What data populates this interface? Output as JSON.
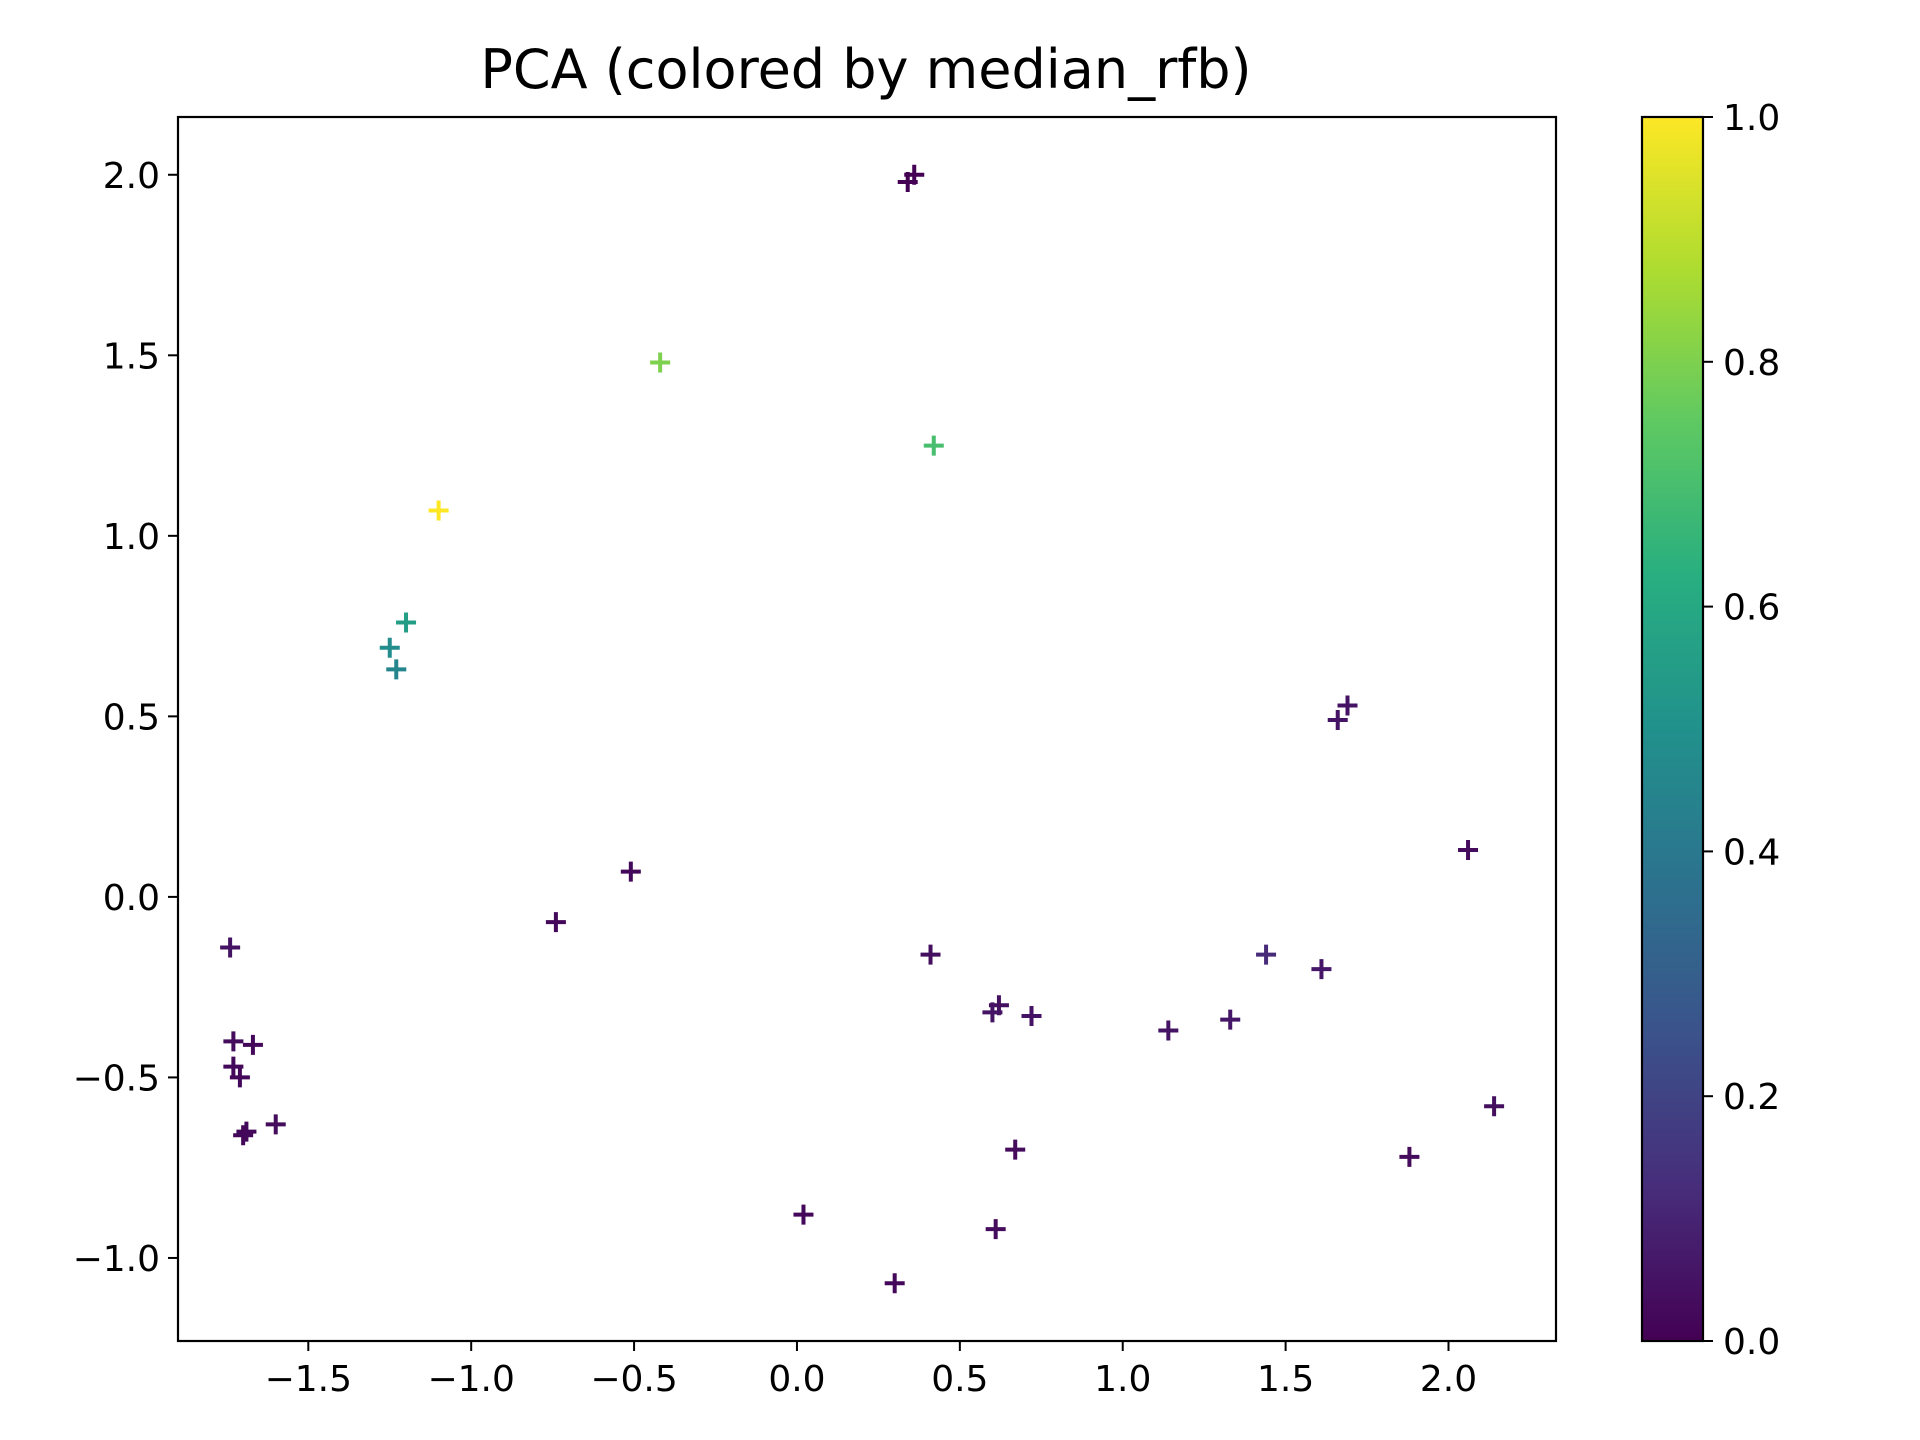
{
  "chart_data": {
    "type": "scatter",
    "title": "PCA (colored by median_rfb)",
    "xlabel": "",
    "ylabel": "",
    "xlim": [
      -1.9,
      2.33
    ],
    "ylim": [
      -1.23,
      2.16
    ],
    "xticks": [
      -1.5,
      -1.0,
      -0.5,
      0.0,
      0.5,
      1.0,
      1.5,
      2.0
    ],
    "xtick_labels": [
      "−1.5",
      "−1.0",
      "−0.5",
      "0.0",
      "0.5",
      "1.0",
      "1.5",
      "2.0"
    ],
    "yticks": [
      -1.0,
      -0.5,
      0.0,
      0.5,
      1.0,
      1.5,
      2.0
    ],
    "ytick_labels": [
      "−1.0",
      "−0.5",
      "0.0",
      "0.5",
      "1.0",
      "1.5",
      "2.0"
    ],
    "marker": "+",
    "grid": false,
    "colormap": "viridis",
    "colorbar": {
      "range": [
        0.0,
        1.0
      ],
      "ticks": [
        0.0,
        0.2,
        0.4,
        0.6,
        0.8,
        1.0
      ],
      "tick_labels": [
        "0.0",
        "0.2",
        "0.4",
        "0.6",
        "0.8",
        "1.0"
      ]
    },
    "points": [
      {
        "x": 0.34,
        "y": 1.98,
        "c": 0.0
      },
      {
        "x": 0.36,
        "y": 2.0,
        "c": 0.0
      },
      {
        "x": -0.42,
        "y": 1.48,
        "c": 0.8
      },
      {
        "x": 0.42,
        "y": 1.25,
        "c": 0.7
      },
      {
        "x": -1.1,
        "y": 1.07,
        "c": 1.0
      },
      {
        "x": -1.2,
        "y": 0.76,
        "c": 0.55
      },
      {
        "x": -1.25,
        "y": 0.69,
        "c": 0.48
      },
      {
        "x": -1.23,
        "y": 0.63,
        "c": 0.45
      },
      {
        "x": 1.66,
        "y": 0.49,
        "c": 0.05
      },
      {
        "x": 1.69,
        "y": 0.53,
        "c": 0.05
      },
      {
        "x": -0.51,
        "y": 0.07,
        "c": 0.02
      },
      {
        "x": 2.06,
        "y": 0.13,
        "c": 0.03
      },
      {
        "x": -0.74,
        "y": -0.07,
        "c": 0.02
      },
      {
        "x": -1.74,
        "y": -0.14,
        "c": 0.05
      },
      {
        "x": 0.41,
        "y": -0.16,
        "c": 0.04
      },
      {
        "x": 1.44,
        "y": -0.16,
        "c": 0.12
      },
      {
        "x": 1.61,
        "y": -0.2,
        "c": 0.06
      },
      {
        "x": 0.62,
        "y": -0.3,
        "c": 0.04
      },
      {
        "x": 0.6,
        "y": -0.32,
        "c": 0.05
      },
      {
        "x": 0.72,
        "y": -0.33,
        "c": 0.05
      },
      {
        "x": 1.33,
        "y": -0.34,
        "c": 0.06
      },
      {
        "x": 1.14,
        "y": -0.37,
        "c": 0.05
      },
      {
        "x": -1.73,
        "y": -0.4,
        "c": 0.03
      },
      {
        "x": -1.67,
        "y": -0.41,
        "c": 0.02
      },
      {
        "x": -1.73,
        "y": -0.47,
        "c": 0.02
      },
      {
        "x": -1.71,
        "y": -0.5,
        "c": 0.02
      },
      {
        "x": 2.14,
        "y": -0.58,
        "c": 0.04
      },
      {
        "x": -1.6,
        "y": -0.63,
        "c": 0.03
      },
      {
        "x": -1.69,
        "y": -0.65,
        "c": 0.02
      },
      {
        "x": -1.7,
        "y": -0.66,
        "c": 0.02
      },
      {
        "x": 0.67,
        "y": -0.7,
        "c": 0.03
      },
      {
        "x": 1.88,
        "y": -0.72,
        "c": 0.03
      },
      {
        "x": 0.02,
        "y": -0.88,
        "c": 0.02
      },
      {
        "x": 0.61,
        "y": -0.92,
        "c": 0.03
      },
      {
        "x": 0.3,
        "y": -1.07,
        "c": 0.02
      }
    ]
  }
}
